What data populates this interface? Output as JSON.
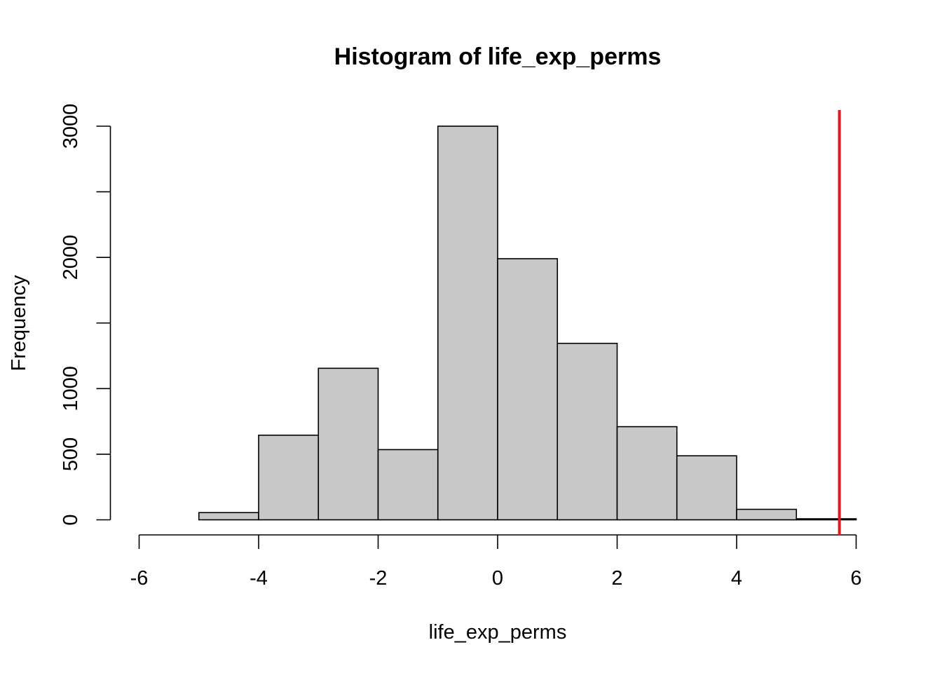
{
  "chart_data": {
    "type": "bar",
    "title": "Histogram of life_exp_perms",
    "xlabel": "life_exp_perms",
    "ylabel": "Frequency",
    "bins": [
      {
        "x0": -6,
        "x1": -5,
        "count": 0
      },
      {
        "x0": -5,
        "x1": -4,
        "count": 55
      },
      {
        "x0": -4,
        "x1": -3,
        "count": 645
      },
      {
        "x0": -3,
        "x1": -2,
        "count": 1155
      },
      {
        "x0": -2,
        "x1": -1,
        "count": 535
      },
      {
        "x0": -1,
        "x1": 0,
        "count": 3000
      },
      {
        "x0": 0,
        "x1": 1,
        "count": 1990
      },
      {
        "x0": 1,
        "x1": 2,
        "count": 1345
      },
      {
        "x0": 2,
        "x1": 3,
        "count": 710
      },
      {
        "x0": 3,
        "x1": 4,
        "count": 488
      },
      {
        "x0": 4,
        "x1": 5,
        "count": 80
      },
      {
        "x0": 5,
        "x1": 6,
        "count": 8
      }
    ],
    "xlim": [
      -6,
      6
    ],
    "ylim": [
      0,
      3000
    ],
    "x_ticks": [
      "-6",
      "-4",
      "-2",
      "0",
      "2",
      "4",
      "6"
    ],
    "y_ticks": [
      0,
      500,
      1000,
      1500,
      2000,
      2500,
      3000
    ],
    "y_tick_labels": [
      "0",
      "500",
      "1000",
      "",
      "2000",
      "",
      "3000"
    ],
    "reference_line": {
      "x": 5.72,
      "color": "#e8161b"
    },
    "bar_color": "#c8c8c8",
    "grid": false,
    "legend": "none"
  }
}
